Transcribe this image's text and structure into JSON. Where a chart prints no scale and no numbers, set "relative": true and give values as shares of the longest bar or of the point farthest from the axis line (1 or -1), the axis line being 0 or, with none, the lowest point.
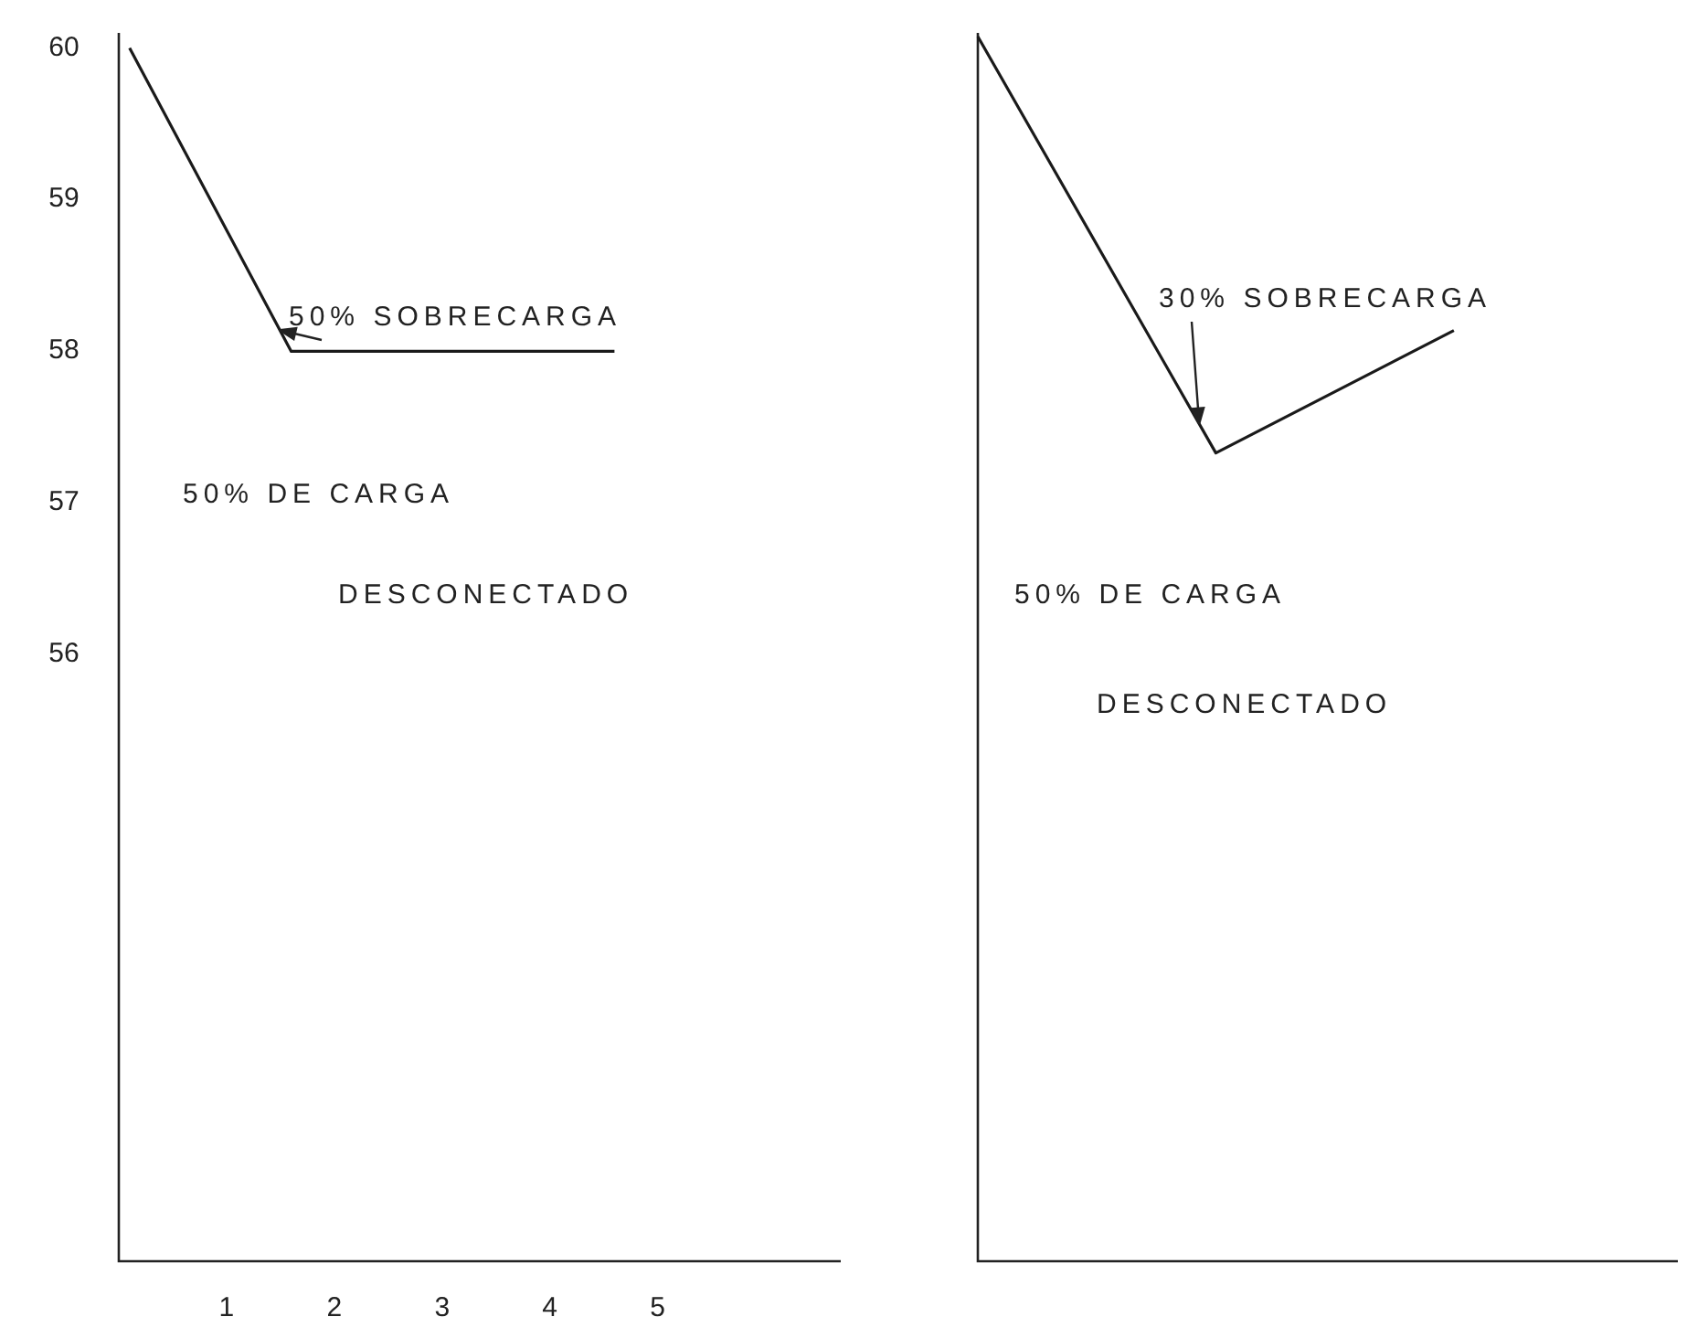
{
  "chart_data": [
    {
      "type": "line",
      "x": [
        0.1,
        1.6,
        4.6
      ],
      "values": [
        60,
        58,
        58
      ],
      "xlim": [
        0,
        6.7
      ],
      "ylim": [
        52,
        60.1
      ],
      "xticks": [
        1,
        2,
        3,
        4,
        5
      ],
      "yticks": [
        60,
        59,
        58,
        57,
        56
      ],
      "color": "#1a1a1a",
      "annotations": [
        "50% SOBRECARGA",
        "50% DE CARGA",
        "DESCONECTADO"
      ]
    },
    {
      "type": "line",
      "relative": true,
      "categories": [
        null,
        null,
        null
      ],
      "values": [
        1,
        0.66,
        0.76
      ],
      "color": "#1a1a1a",
      "annotations": [
        "30% SOBRECARGA",
        "50% DE CARGA",
        "DESCONECTADO"
      ]
    }
  ]
}
